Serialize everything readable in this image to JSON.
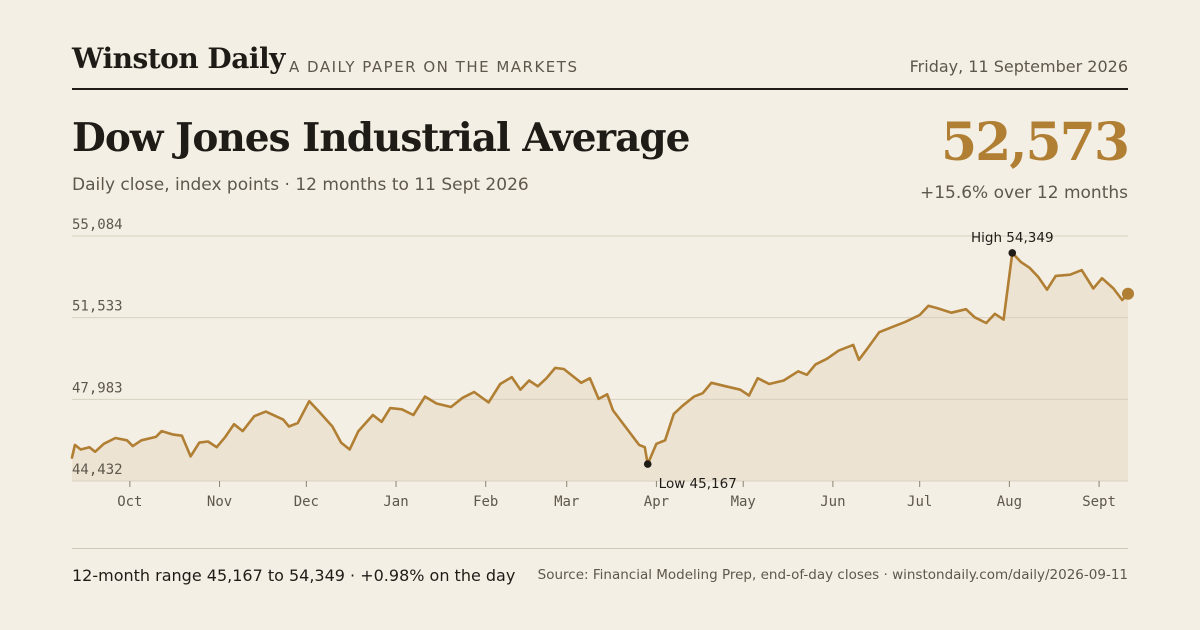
{
  "masthead": {
    "brand": "Winston Daily",
    "tagline": "A DAILY PAPER ON THE MARKETS",
    "date": "Friday, 11 September 2026"
  },
  "header": {
    "title": "Dow Jones Industrial Average",
    "subtitle": "Daily close, index points · 12 months to 11 Sept 2026",
    "latest_value": "52,573",
    "change_text": "+15.6% over 12 months"
  },
  "footer": {
    "range_text": "12-month range 45,167 to 54,349 · +0.98% on the day",
    "source_text": "Source: Financial Modeling Prep, end-of-day closes · winstondaily.com/daily/2026-09-11"
  },
  "colors": {
    "line": "#b07f33",
    "area": "#ede3d3",
    "grid": "#d8d0c0",
    "marker": "#1f1c17"
  },
  "chart_data": {
    "type": "area",
    "title": "Dow Jones Industrial Average",
    "ylabel": "",
    "xlabel": "",
    "ylim": [
      44432,
      55084
    ],
    "xlim": [
      "2025-09-11",
      "2026-09-11"
    ],
    "y_ticks": [
      44432,
      47983,
      51533,
      55084
    ],
    "y_tick_labels": [
      "44,432",
      "47,983",
      "51,533",
      "55,084"
    ],
    "x_ticks": [
      {
        "date": "2025-10-01",
        "label": "Oct"
      },
      {
        "date": "2025-11-01",
        "label": "Nov"
      },
      {
        "date": "2025-12-01",
        "label": "Dec"
      },
      {
        "date": "2026-01-01",
        "label": "Jan"
      },
      {
        "date": "2026-02-01",
        "label": "Feb"
      },
      {
        "date": "2026-03-01",
        "label": "Mar"
      },
      {
        "date": "2026-04-01",
        "label": "Apr"
      },
      {
        "date": "2026-05-01",
        "label": "May"
      },
      {
        "date": "2026-06-01",
        "label": "Jun"
      },
      {
        "date": "2026-07-01",
        "label": "Jul"
      },
      {
        "date": "2026-08-01",
        "label": "Aug"
      },
      {
        "date": "2026-09-01",
        "label": "Sept"
      }
    ],
    "grid": true,
    "legend": "none",
    "annotations": [
      {
        "label": "High 54,349",
        "date": "2026-08-02",
        "value": 54349
      },
      {
        "label": "Low 45,167",
        "date": "2026-03-29",
        "value": 45167
      }
    ],
    "latest": {
      "date": "2026-09-11",
      "value": 52573
    },
    "series": [
      {
        "values": [
          {
            "x": "2025-09-11",
            "y": 45450
          },
          {
            "x": "2025-09-12",
            "y": 46000
          },
          {
            "x": "2025-09-14",
            "y": 45800
          },
          {
            "x": "2025-09-17",
            "y": 45900
          },
          {
            "x": "2025-09-19",
            "y": 45700
          },
          {
            "x": "2025-09-22",
            "y": 46050
          },
          {
            "x": "2025-09-26",
            "y": 46300
          },
          {
            "x": "2025-09-30",
            "y": 46200
          },
          {
            "x": "2025-10-02",
            "y": 45950
          },
          {
            "x": "2025-10-05",
            "y": 46200
          },
          {
            "x": "2025-10-10",
            "y": 46350
          },
          {
            "x": "2025-10-12",
            "y": 46600
          },
          {
            "x": "2025-10-16",
            "y": 46450
          },
          {
            "x": "2025-10-19",
            "y": 46400
          },
          {
            "x": "2025-10-22",
            "y": 45500
          },
          {
            "x": "2025-10-25",
            "y": 46100
          },
          {
            "x": "2025-10-28",
            "y": 46150
          },
          {
            "x": "2025-10-31",
            "y": 45900
          },
          {
            "x": "2025-11-03",
            "y": 46350
          },
          {
            "x": "2025-11-06",
            "y": 46900
          },
          {
            "x": "2025-11-09",
            "y": 46600
          },
          {
            "x": "2025-11-13",
            "y": 47250
          },
          {
            "x": "2025-11-17",
            "y": 47450
          },
          {
            "x": "2025-11-23",
            "y": 47100
          },
          {
            "x": "2025-11-25",
            "y": 46800
          },
          {
            "x": "2025-11-28",
            "y": 46950
          },
          {
            "x": "2025-12-02",
            "y": 47900
          },
          {
            "x": "2025-12-05",
            "y": 47500
          },
          {
            "x": "2025-12-10",
            "y": 46800
          },
          {
            "x": "2025-12-13",
            "y": 46100
          },
          {
            "x": "2025-12-16",
            "y": 45800
          },
          {
            "x": "2025-12-19",
            "y": 46600
          },
          {
            "x": "2025-12-24",
            "y": 47300
          },
          {
            "x": "2025-12-27",
            "y": 47000
          },
          {
            "x": "2025-12-30",
            "y": 47600
          },
          {
            "x": "2026-01-03",
            "y": 47550
          },
          {
            "x": "2026-01-07",
            "y": 47300
          },
          {
            "x": "2026-01-11",
            "y": 48100
          },
          {
            "x": "2026-01-15",
            "y": 47800
          },
          {
            "x": "2026-01-20",
            "y": 47650
          },
          {
            "x": "2026-01-24",
            "y": 48050
          },
          {
            "x": "2026-01-28",
            "y": 48300
          },
          {
            "x": "2026-02-02",
            "y": 47850
          },
          {
            "x": "2026-02-06",
            "y": 48650
          },
          {
            "x": "2026-02-10",
            "y": 48950
          },
          {
            "x": "2026-02-13",
            "y": 48400
          },
          {
            "x": "2026-02-16",
            "y": 48800
          },
          {
            "x": "2026-02-19",
            "y": 48550
          },
          {
            "x": "2026-02-22",
            "y": 48900
          },
          {
            "x": "2026-02-25",
            "y": 49350
          },
          {
            "x": "2026-02-28",
            "y": 49300
          },
          {
            "x": "2026-03-03",
            "y": 49000
          },
          {
            "x": "2026-03-06",
            "y": 48700
          },
          {
            "x": "2026-03-09",
            "y": 48900
          },
          {
            "x": "2026-03-12",
            "y": 48000
          },
          {
            "x": "2026-03-15",
            "y": 48200
          },
          {
            "x": "2026-03-17",
            "y": 47500
          },
          {
            "x": "2026-03-20",
            "y": 47000
          },
          {
            "x": "2026-03-23",
            "y": 46500
          },
          {
            "x": "2026-03-26",
            "y": 46000
          },
          {
            "x": "2026-03-28",
            "y": 45900
          },
          {
            "x": "2026-03-29",
            "y": 45167
          },
          {
            "x": "2026-04-01",
            "y": 46050
          },
          {
            "x": "2026-04-04",
            "y": 46200
          },
          {
            "x": "2026-04-07",
            "y": 47350
          },
          {
            "x": "2026-04-10",
            "y": 47700
          },
          {
            "x": "2026-04-14",
            "y": 48100
          },
          {
            "x": "2026-04-17",
            "y": 48250
          },
          {
            "x": "2026-04-20",
            "y": 48700
          },
          {
            "x": "2026-04-25",
            "y": 48550
          },
          {
            "x": "2026-04-30",
            "y": 48400
          },
          {
            "x": "2026-05-03",
            "y": 48150
          },
          {
            "x": "2026-05-06",
            "y": 48900
          },
          {
            "x": "2026-05-10",
            "y": 48650
          },
          {
            "x": "2026-05-15",
            "y": 48800
          },
          {
            "x": "2026-05-20",
            "y": 49200
          },
          {
            "x": "2026-05-23",
            "y": 49050
          },
          {
            "x": "2026-05-26",
            "y": 49500
          },
          {
            "x": "2026-05-30",
            "y": 49750
          },
          {
            "x": "2026-06-03",
            "y": 50100
          },
          {
            "x": "2026-06-08",
            "y": 50350
          },
          {
            "x": "2026-06-10",
            "y": 49700
          },
          {
            "x": "2026-06-13",
            "y": 50200
          },
          {
            "x": "2026-06-17",
            "y": 50900
          },
          {
            "x": "2026-06-21",
            "y": 51100
          },
          {
            "x": "2026-06-26",
            "y": 51350
          },
          {
            "x": "2026-07-01",
            "y": 51650
          },
          {
            "x": "2026-07-04",
            "y": 52050
          },
          {
            "x": "2026-07-07",
            "y": 51950
          },
          {
            "x": "2026-07-12",
            "y": 51750
          },
          {
            "x": "2026-07-17",
            "y": 51900
          },
          {
            "x": "2026-07-20",
            "y": 51550
          },
          {
            "x": "2026-07-24",
            "y": 51300
          },
          {
            "x": "2026-07-27",
            "y": 51700
          },
          {
            "x": "2026-07-30",
            "y": 51450
          },
          {
            "x": "2026-08-02",
            "y": 54349
          },
          {
            "x": "2026-08-05",
            "y": 53950
          },
          {
            "x": "2026-08-08",
            "y": 53700
          },
          {
            "x": "2026-08-11",
            "y": 53300
          },
          {
            "x": "2026-08-14",
            "y": 52750
          },
          {
            "x": "2026-08-17",
            "y": 53350
          },
          {
            "x": "2026-08-22",
            "y": 53400
          },
          {
            "x": "2026-08-26",
            "y": 53600
          },
          {
            "x": "2026-08-30",
            "y": 52800
          },
          {
            "x": "2026-09-02",
            "y": 53250
          },
          {
            "x": "2026-09-06",
            "y": 52800
          },
          {
            "x": "2026-09-09",
            "y": 52300
          },
          {
            "x": "2026-09-11",
            "y": 52573
          }
        ]
      }
    ]
  }
}
